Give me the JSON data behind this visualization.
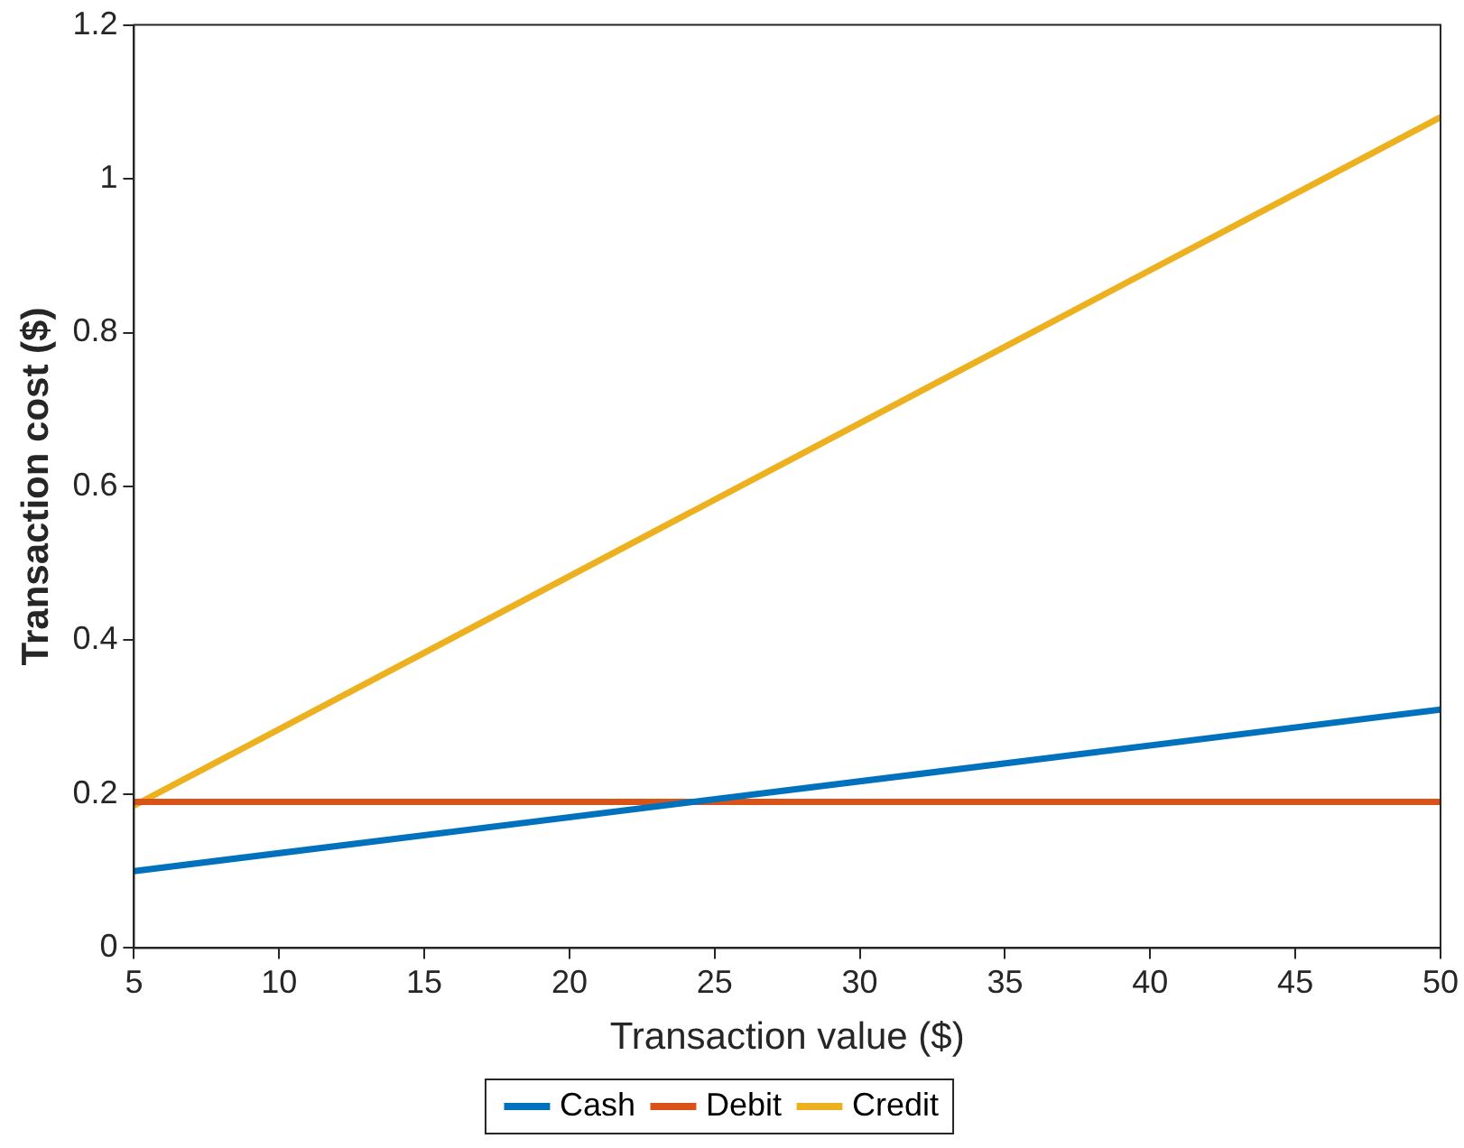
{
  "chart_data": {
    "type": "line",
    "xlabel": "Transaction value ($)",
    "ylabel": "Transaction cost ($)",
    "x": [
      5,
      50
    ],
    "series": [
      {
        "name": "Cash",
        "color": "#0072bd",
        "values": [
          0.1,
          0.31
        ]
      },
      {
        "name": "Debit",
        "color": "#d95319",
        "values": [
          0.19,
          0.19
        ]
      },
      {
        "name": "Credit",
        "color": "#edb120",
        "values": [
          0.185,
          1.08
        ]
      }
    ],
    "xlim": [
      5,
      50
    ],
    "xticks": [
      5,
      10,
      15,
      20,
      25,
      30,
      35,
      40,
      45,
      50
    ],
    "ylim": [
      0,
      1.2
    ],
    "yticks": [
      0,
      0.2,
      0.4,
      0.6,
      0.8,
      1,
      1.2
    ],
    "grid": false,
    "legend": "bottom",
    "marker": "none",
    "line_style": "solid"
  }
}
